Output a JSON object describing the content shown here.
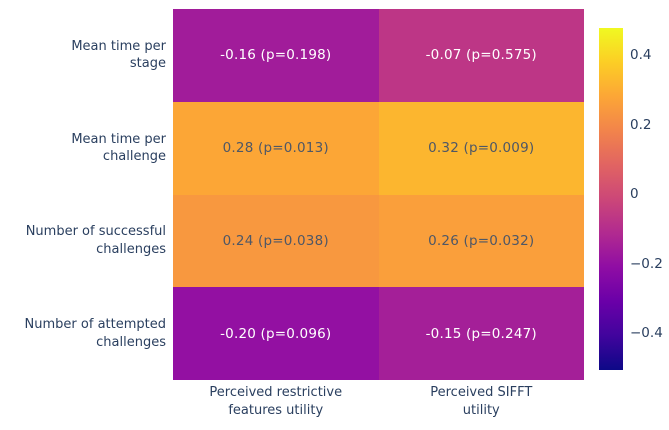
{
  "chart_data": {
    "type": "heatmap",
    "title": "",
    "row_labels": [
      [
        "Mean time per",
        "stage"
      ],
      [
        "Mean time per",
        "challenge"
      ],
      [
        "Number of successful",
        "challenges"
      ],
      [
        "Number of attempted",
        "challenges"
      ]
    ],
    "col_labels": [
      [
        "Perceived restrictive",
        "features utility"
      ],
      [
        "Perceived SIFFT",
        "utility"
      ]
    ],
    "values": [
      [
        -0.16,
        -0.07
      ],
      [
        0.28,
        0.32
      ],
      [
        0.24,
        0.26
      ],
      [
        -0.2,
        -0.15
      ]
    ],
    "p_values": [
      [
        0.198,
        0.575
      ],
      [
        0.013,
        0.009
      ],
      [
        0.038,
        0.032
      ],
      [
        0.096,
        0.247
      ]
    ],
    "cell_labels": [
      [
        "-0.16 (p=0.198)",
        "-0.07 (p=0.575)"
      ],
      [
        "0.28 (p=0.013)",
        "0.32 (p=0.009)"
      ],
      [
        "0.24 (p=0.038)",
        "0.26 (p=0.032)"
      ],
      [
        "-0.20 (p=0.096)",
        "-0.15 (p=0.247)"
      ]
    ],
    "colorbar": {
      "tick_labels": [
        "0.4",
        "0.2",
        "0",
        "−0.2",
        "−0.4"
      ],
      "tick_values": [
        0.4,
        0.2,
        0,
        -0.2,
        -0.4
      ],
      "value_top": 0.478,
      "value_bottom": -0.506,
      "colormap": "plasma"
    },
    "colorscale_plasma": [
      "#0d0887",
      "#41049d",
      "#6a00a8",
      "#8f0da4",
      "#b12a90",
      "#cc4778",
      "#e16462",
      "#f2844b",
      "#fca636",
      "#fcce25",
      "#f0f921"
    ],
    "colors": {
      "axis_label": "#2a3f5f",
      "cell_text_light": "#ffffff",
      "cell_text_dark": "#4e5766",
      "background": "#ffffff"
    },
    "layout_hints": {
      "grid": "off",
      "legend": "colorbar-right",
      "rows": 4,
      "cols": 2
    }
  }
}
